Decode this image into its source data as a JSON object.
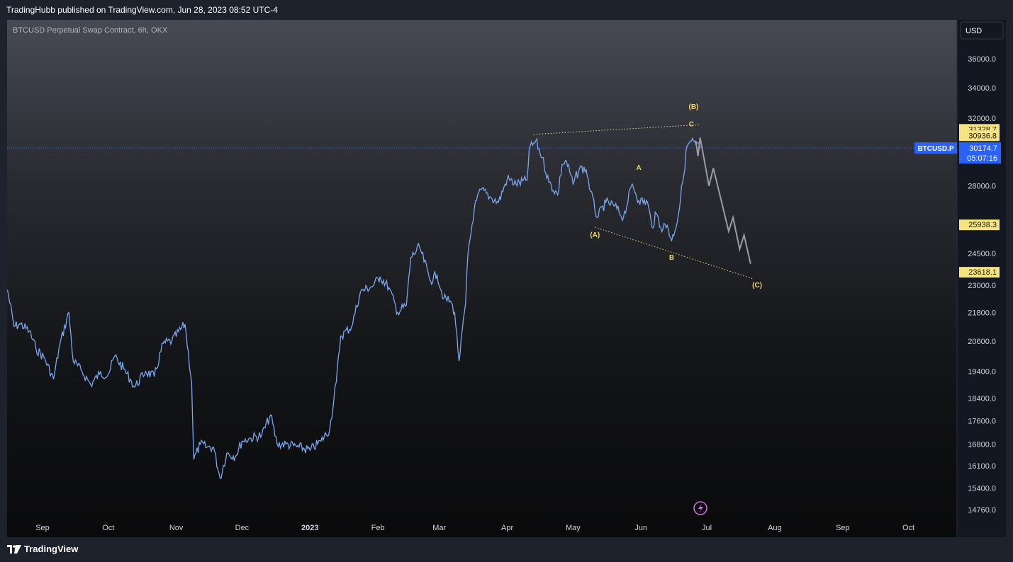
{
  "header": {
    "publisher_line": "TradingHubb published on TradingView.com, Jun 28, 2023 08:52 UTC-4"
  },
  "chart_title": "BTCUSD Perpetual Swap Contract, 6h, OKX",
  "currency_button": "USD",
  "footer": {
    "brand": "TradingView"
  },
  "colors": {
    "candles": "#7aa7f0",
    "projection": "#9a9ca3",
    "annotation": "#f2d46b",
    "price_tag_yellow": "#f7e37f",
    "last_price_tag": "#2962ff"
  },
  "chart_data": {
    "type": "line",
    "symbol": "BTCUSD.P",
    "timeframe": "6h",
    "exchange": "OKX",
    "last_price": "30174.7",
    "countdown": "05:07:16",
    "price_axis": {
      "ticks": [
        36000,
        34000,
        32000,
        28000,
        24500,
        23000,
        21800,
        20600,
        19400,
        18400,
        17600,
        16800,
        16100,
        15400,
        14760
      ],
      "labels": [
        "36000.0",
        "34000.0",
        "32000.0",
        "28000.0",
        "24500.0",
        "23000.0",
        "21800.0",
        "20600.0",
        "19400.0",
        "18400.0",
        "17600.0",
        "16800.0",
        "16100.0",
        "15400.0",
        "14760.0"
      ],
      "scale": "log"
    },
    "price_tags": [
      {
        "value": 31328.7,
        "label": "31328.7"
      },
      {
        "value": 30936.8,
        "label": "30936.8"
      },
      {
        "value": 25938.3,
        "label": "25938.3"
      },
      {
        "value": 23618.1,
        "label": "23618.1"
      }
    ],
    "time_axis": {
      "labels": [
        "Sep",
        "Oct",
        "Nov",
        "Dec",
        "2023",
        "Feb",
        "Mar",
        "Apr",
        "May",
        "Jun",
        "Jul",
        "Aug",
        "Sep",
        "Oct"
      ],
      "dates": [
        "2022-09-01",
        "2022-10-01",
        "2022-11-01",
        "2022-12-01",
        "2023-01-01",
        "2023-02-01",
        "2023-03-01",
        "2023-04-01",
        "2023-05-01",
        "2023-06-01",
        "2023-07-01",
        "2023-08-01",
        "2023-09-01",
        "2023-10-01"
      ]
    },
    "price_series": {
      "name": "BTCUSD.P",
      "points": [
        [
          "2022-08-16",
          22800
        ],
        [
          "2022-08-19",
          21200
        ],
        [
          "2022-08-22",
          21300
        ],
        [
          "2022-08-26",
          21000
        ],
        [
          "2022-08-29",
          20300
        ],
        [
          "2022-09-02",
          19900
        ],
        [
          "2022-09-06",
          19100
        ],
        [
          "2022-09-09",
          20500
        ],
        [
          "2022-09-13",
          21800
        ],
        [
          "2022-09-15",
          19800
        ],
        [
          "2022-09-19",
          19400
        ],
        [
          "2022-09-23",
          18900
        ],
        [
          "2022-09-27",
          19300
        ],
        [
          "2022-10-01",
          19300
        ],
        [
          "2022-10-04",
          20000
        ],
        [
          "2022-10-08",
          19500
        ],
        [
          "2022-10-11",
          19100
        ],
        [
          "2022-10-13",
          18800
        ],
        [
          "2022-10-18",
          19400
        ],
        [
          "2022-10-22",
          19200
        ],
        [
          "2022-10-26",
          20500
        ],
        [
          "2022-10-30",
          20600
        ],
        [
          "2022-11-05",
          21300
        ],
        [
          "2022-11-08",
          19000
        ],
        [
          "2022-11-09",
          16300
        ],
        [
          "2022-11-12",
          16800
        ],
        [
          "2022-11-15",
          16700
        ],
        [
          "2022-11-18",
          16700
        ],
        [
          "2022-11-21",
          15700
        ],
        [
          "2022-11-24",
          16500
        ],
        [
          "2022-11-28",
          16400
        ],
        [
          "2022-12-01",
          16900
        ],
        [
          "2022-12-05",
          17000
        ],
        [
          "2022-12-10",
          17100
        ],
        [
          "2022-12-14",
          17800
        ],
        [
          "2022-12-17",
          16800
        ],
        [
          "2022-12-21",
          16800
        ],
        [
          "2022-12-27",
          16700
        ],
        [
          "2023-01-01",
          16600
        ],
        [
          "2023-01-06",
          16900
        ],
        [
          "2023-01-10",
          17300
        ],
        [
          "2023-01-13",
          19000
        ],
        [
          "2023-01-15",
          20800
        ],
        [
          "2023-01-20",
          21200
        ],
        [
          "2023-01-24",
          22700
        ],
        [
          "2023-01-30",
          23000
        ],
        [
          "2023-02-02",
          23400
        ],
        [
          "2023-02-06",
          22900
        ],
        [
          "2023-02-10",
          21800
        ],
        [
          "2023-02-14",
          22100
        ],
        [
          "2023-02-16",
          24300
        ],
        [
          "2023-02-20",
          24800
        ],
        [
          "2023-02-25",
          23200
        ],
        [
          "2023-02-28",
          23500
        ],
        [
          "2023-03-03",
          22400
        ],
        [
          "2023-03-06",
          22300
        ],
        [
          "2023-03-08",
          21800
        ],
        [
          "2023-03-10",
          19800
        ],
        [
          "2023-03-13",
          22200
        ],
        [
          "2023-03-14",
          24400
        ],
        [
          "2023-03-17",
          26800
        ],
        [
          "2023-03-20",
          27800
        ],
        [
          "2023-03-24",
          27400
        ],
        [
          "2023-03-28",
          27100
        ],
        [
          "2023-04-01",
          28400
        ],
        [
          "2023-04-05",
          28100
        ],
        [
          "2023-04-10",
          28300
        ],
        [
          "2023-04-11",
          30100
        ],
        [
          "2023-04-14",
          30600
        ],
        [
          "2023-04-17",
          29600
        ],
        [
          "2023-04-20",
          28200
        ],
        [
          "2023-04-24",
          27500
        ],
        [
          "2023-04-26",
          29200
        ],
        [
          "2023-04-28",
          29400
        ],
        [
          "2023-05-01",
          28100
        ],
        [
          "2023-05-04",
          29000
        ],
        [
          "2023-05-07",
          28900
        ],
        [
          "2023-05-09",
          27700
        ],
        [
          "2023-05-12",
          26300
        ],
        [
          "2023-05-16",
          27100
        ],
        [
          "2023-05-20",
          26900
        ],
        [
          "2023-05-24",
          26300
        ],
        [
          "2023-05-28",
          28100
        ],
        [
          "2023-05-31",
          27200
        ],
        [
          "2023-06-04",
          27100
        ],
        [
          "2023-06-06",
          25800
        ],
        [
          "2023-06-08",
          26500
        ],
        [
          "2023-06-10",
          25800
        ],
        [
          "2023-06-13",
          25900
        ],
        [
          "2023-06-15",
          25100
        ],
        [
          "2023-06-18",
          26400
        ],
        [
          "2023-06-20",
          28200
        ],
        [
          "2023-06-22",
          30300
        ],
        [
          "2023-06-24",
          30600
        ],
        [
          "2023-06-26",
          30400
        ],
        [
          "2023-06-28",
          30175
        ]
      ]
    },
    "projection_series": {
      "points": [
        [
          "2023-06-26",
          30600
        ],
        [
          "2023-06-27",
          29700
        ],
        [
          "2023-06-28",
          30800
        ],
        [
          "2023-07-02",
          28000
        ],
        [
          "2023-07-04",
          29000
        ],
        [
          "2023-07-11",
          25600
        ],
        [
          "2023-07-13",
          26300
        ],
        [
          "2023-07-16",
          24700
        ],
        [
          "2023-07-18",
          25400
        ],
        [
          "2023-07-21",
          24000
        ]
      ]
    },
    "trend_lines": [
      {
        "style": "dotted",
        "from": [
          "2023-04-13",
          31000
        ],
        "to": [
          "2023-06-28",
          31600
        ]
      },
      {
        "style": "dotted",
        "from": [
          "2023-05-11",
          25800
        ],
        "to": [
          "2023-07-22",
          23300
        ]
      }
    ],
    "wave_labels": [
      {
        "text": "(A)",
        "date": "2023-05-11",
        "value": 25300
      },
      {
        "text": "A",
        "date": "2023-05-31",
        "value": 28900
      },
      {
        "text": "B",
        "date": "2023-06-15",
        "value": 24200
      },
      {
        "text": "C",
        "date": "2023-06-24",
        "value": 31500
      },
      {
        "text": "(B)",
        "date": "2023-06-25",
        "value": 32600
      },
      {
        "text": "(C)",
        "date": "2023-07-24",
        "value": 22900
      }
    ]
  }
}
